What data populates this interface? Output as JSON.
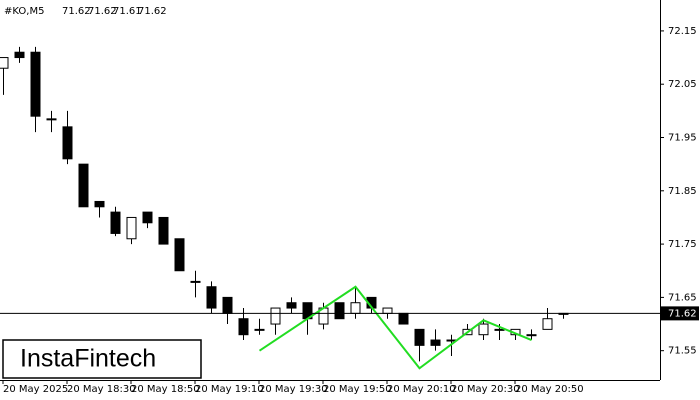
{
  "chart_data": {
    "type": "candlestick",
    "title": "#KO,M5",
    "watermark": "InstaFintech",
    "categories": [
      "20 May 2025",
      null,
      null,
      null,
      "20 May 18:30",
      null,
      null,
      null,
      "20 May 18:50",
      null,
      null,
      null,
      "20 May 19:10",
      null,
      null,
      null,
      "20 May 19:30",
      null,
      null,
      null,
      "20 May 19:50",
      null,
      null,
      null,
      "20 May 20:10",
      null,
      null,
      null,
      "20 May 20:30",
      null,
      null,
      null,
      "20 May 20:50",
      null,
      null,
      null
    ],
    "open": [
      72.08,
      72.11,
      72.11,
      71.985,
      71.97,
      71.9,
      71.83,
      71.81,
      71.76,
      71.81,
      71.8,
      71.76,
      71.68,
      71.67,
      71.65,
      71.61,
      71.59,
      71.6,
      71.64,
      71.64,
      71.6,
      71.64,
      71.62,
      71.65,
      71.62,
      71.62,
      71.59,
      71.57,
      71.57,
      71.58,
      71.58,
      71.59,
      71.58,
      71.58,
      71.59,
      71.62
    ],
    "high": [
      72.1,
      72.12,
      72.12,
      72.0,
      72.0,
      71.9,
      71.83,
      71.82,
      71.8,
      71.81,
      71.8,
      71.76,
      71.7,
      71.68,
      71.65,
      71.63,
      71.61,
      71.63,
      71.65,
      71.64,
      71.64,
      71.64,
      71.67,
      71.65,
      71.63,
      71.62,
      71.59,
      71.59,
      71.58,
      71.6,
      71.61,
      71.6,
      71.59,
      71.59,
      71.63,
      71.62
    ],
    "low": [
      72.03,
      72.09,
      71.96,
      71.96,
      71.9,
      71.82,
      71.8,
      71.765,
      71.75,
      71.78,
      71.75,
      71.7,
      71.65,
      71.62,
      71.6,
      71.57,
      71.58,
      71.58,
      71.62,
      71.58,
      71.59,
      71.61,
      71.61,
      71.62,
      71.61,
      71.6,
      71.53,
      71.55,
      71.54,
      71.58,
      71.57,
      71.57,
      71.57,
      71.57,
      71.59,
      71.61
    ],
    "close": [
      72.1,
      72.1,
      71.99,
      71.985,
      71.91,
      71.82,
      71.82,
      71.77,
      71.8,
      71.79,
      71.75,
      71.7,
      71.68,
      71.63,
      71.62,
      71.58,
      71.59,
      71.63,
      71.63,
      71.61,
      71.63,
      71.61,
      71.64,
      71.63,
      71.63,
      71.6,
      71.56,
      71.56,
      71.57,
      71.59,
      71.6,
      71.59,
      71.59,
      71.58,
      71.61,
      71.62
    ],
    "up_color": "#ffffff",
    "down_color": "#000000",
    "last_price": 71.62,
    "pattern": {
      "color": "#22dd22",
      "x": [
        16,
        22,
        26,
        30,
        33
      ],
      "values": [
        71.55,
        71.67,
        71.517,
        71.607,
        71.57
      ]
    },
    "ylim": [
      71.495,
      72.208
    ],
    "yticks": [
      71.55,
      71.65,
      71.75,
      71.85,
      71.95,
      72.05,
      72.15
    ]
  }
}
